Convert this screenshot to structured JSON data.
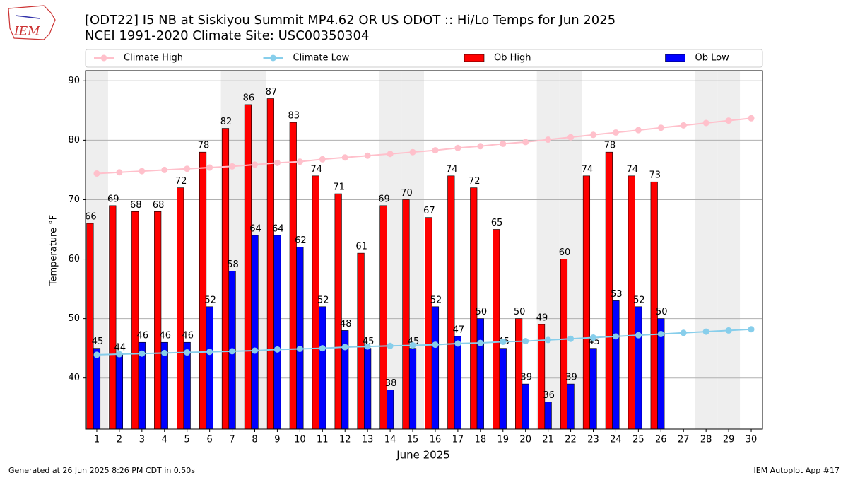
{
  "logo": "IEM",
  "chart_data": {
    "type": "bar",
    "title": "[ODT22] I5 NB at Siskiyou Summit MP4.62  OR US ODOT :: Hi/Lo Temps for Jun 2025",
    "subtitle": "NCEI 1991-2020 Climate Site: USC00350304",
    "xlabel": "June 2025",
    "ylabel": "Temperature °F",
    "footer_left": "Generated at 26 Jun 2025 8:26 PM CDT in 0.50s",
    "footer_right": "IEM Autoplot App #17",
    "categories": [
      "1",
      "2",
      "3",
      "4",
      "5",
      "6",
      "7",
      "8",
      "9",
      "10",
      "11",
      "12",
      "13",
      "14",
      "15",
      "16",
      "17",
      "18",
      "19",
      "20",
      "21",
      "22",
      "23",
      "24",
      "25",
      "26",
      "27",
      "28",
      "29",
      "30"
    ],
    "shaded_days": [
      1,
      7,
      8,
      14,
      15,
      21,
      22,
      28,
      29
    ],
    "ylim": [
      31.4,
      91.7
    ],
    "yticks": [
      40,
      50,
      60,
      70,
      80,
      90
    ],
    "grid": true,
    "legend": "top",
    "series": [
      {
        "name": "Climate High",
        "type": "line",
        "color": "#ffc0cb",
        "values": [
          74.4,
          74.6,
          74.8,
          75.0,
          75.2,
          75.4,
          75.6,
          75.9,
          76.2,
          76.4,
          76.8,
          77.1,
          77.4,
          77.7,
          78.0,
          78.3,
          78.7,
          79.0,
          79.4,
          79.7,
          80.1,
          80.5,
          80.9,
          81.3,
          81.7,
          82.1,
          82.5,
          82.9,
          83.3,
          83.7
        ]
      },
      {
        "name": "Climate Low",
        "type": "line",
        "color": "#87ceeb",
        "values": [
          43.9,
          44.0,
          44.1,
          44.2,
          44.3,
          44.4,
          44.5,
          44.6,
          44.8,
          44.9,
          45.0,
          45.2,
          45.3,
          45.4,
          45.5,
          45.6,
          45.8,
          45.9,
          46.1,
          46.2,
          46.4,
          46.6,
          46.8,
          47.0,
          47.2,
          47.4,
          47.6,
          47.8,
          48.0,
          48.2
        ]
      },
      {
        "name": "Ob High",
        "type": "bar",
        "color": "#ff0000",
        "values": [
          66,
          69,
          68,
          68,
          72,
          78,
          82,
          86,
          87,
          83,
          74,
          71,
          61,
          69,
          70,
          67,
          74,
          72,
          65,
          50,
          49,
          60,
          74,
          78,
          74,
          73,
          null,
          null,
          null,
          null
        ]
      },
      {
        "name": "Ob Low",
        "type": "bar",
        "color": "#0000ff",
        "values": [
          45,
          44,
          46,
          46,
          46,
          52,
          58,
          64,
          64,
          62,
          52,
          48,
          45,
          38,
          45,
          52,
          47,
          50,
          45,
          39,
          36,
          39,
          45,
          53,
          52,
          50,
          null,
          null,
          null,
          null
        ]
      }
    ]
  }
}
